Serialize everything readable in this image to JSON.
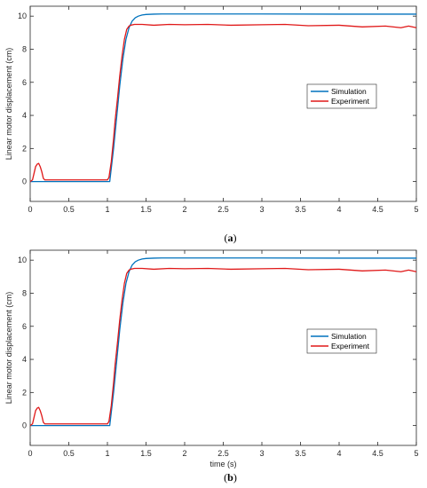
{
  "chart_data": [
    {
      "type": "line",
      "panel": "a",
      "caption_open": "(",
      "caption_letter": "a",
      "caption_close": ")",
      "xlabel": "",
      "ylabel": "Linear motor displacement (cm)",
      "xlim": [
        0,
        5
      ],
      "ylim": [
        -1.2,
        10.6
      ],
      "xticks": [
        0,
        0.5,
        1,
        1.5,
        2,
        2.5,
        3,
        3.5,
        4,
        4.5,
        5
      ],
      "xtick_labels": [
        "0",
        "0.5",
        "1",
        "1.5",
        "2",
        "2.5",
        "3",
        "3.5",
        "4",
        "4.5",
        "5"
      ],
      "yticks": [
        0,
        2,
        4,
        6,
        8,
        10
      ],
      "ytick_labels": [
        "0",
        "2",
        "4",
        "6",
        "8",
        "10"
      ],
      "legend": {
        "placement": "right-middle"
      },
      "series": [
        {
          "name": "Simulation",
          "color": "#0072bd",
          "x": [
            0,
            1.03,
            1.08,
            1.12,
            1.16,
            1.2,
            1.24,
            1.28,
            1.32,
            1.36,
            1.4,
            1.45,
            1.5,
            1.6,
            1.7,
            1.8,
            2.0,
            3.0,
            4.0,
            5.0
          ],
          "y": [
            0,
            0,
            2.0,
            3.9,
            5.8,
            7.4,
            8.6,
            9.3,
            9.7,
            9.9,
            10.0,
            10.07,
            10.1,
            10.12,
            10.13,
            10.13,
            10.13,
            10.13,
            10.12,
            10.12
          ]
        },
        {
          "name": "Experiment",
          "color": "#e01818",
          "x": [
            0,
            0.03,
            0.05,
            0.07,
            0.09,
            0.11,
            0.13,
            0.15,
            0.17,
            0.19,
            0.5,
            0.8,
            1.0,
            1.02,
            1.05,
            1.08,
            1.1,
            1.13,
            1.16,
            1.19,
            1.22,
            1.25,
            1.28,
            1.3,
            1.35,
            1.45,
            1.6,
            1.8,
            2.0,
            2.3,
            2.6,
            3.0,
            3.3,
            3.6,
            4.0,
            4.3,
            4.6,
            4.8,
            4.9,
            5.0
          ],
          "y": [
            0,
            0.1,
            0.5,
            0.9,
            1.05,
            1.1,
            0.9,
            0.6,
            0.2,
            0.1,
            0.1,
            0.1,
            0.1,
            0.25,
            1.2,
            2.6,
            3.7,
            5.0,
            6.4,
            7.6,
            8.6,
            9.2,
            9.4,
            9.45,
            9.5,
            9.5,
            9.45,
            9.5,
            9.48,
            9.5,
            9.45,
            9.48,
            9.5,
            9.42,
            9.45,
            9.35,
            9.4,
            9.3,
            9.4,
            9.3
          ]
        }
      ]
    },
    {
      "type": "line",
      "panel": "b",
      "caption_open": "(",
      "caption_letter": "b",
      "caption_close": ")",
      "xlabel": "time (s)",
      "ylabel": "Linear motor displacement (cm)",
      "xlim": [
        0,
        5
      ],
      "ylim": [
        -1.2,
        10.6
      ],
      "xticks": [
        0,
        0.5,
        1,
        1.5,
        2,
        2.5,
        3,
        3.5,
        4,
        4.5,
        5
      ],
      "xtick_labels": [
        "0",
        "0.5",
        "1",
        "1.5",
        "2",
        "2.5",
        "3",
        "3.5",
        "4",
        "4.5",
        "5"
      ],
      "yticks": [
        0,
        2,
        4,
        6,
        8,
        10
      ],
      "ytick_labels": [
        "0",
        "2",
        "4",
        "6",
        "8",
        "10"
      ],
      "legend": {
        "placement": "right-middle"
      },
      "series": [
        {
          "name": "Simulation",
          "color": "#0072bd",
          "x": [
            0,
            1.03,
            1.08,
            1.12,
            1.16,
            1.2,
            1.24,
            1.28,
            1.32,
            1.36,
            1.4,
            1.45,
            1.5,
            1.6,
            1.7,
            1.8,
            2.0,
            3.0,
            4.0,
            5.0
          ],
          "y": [
            0,
            0,
            2.0,
            3.9,
            5.8,
            7.4,
            8.6,
            9.3,
            9.7,
            9.9,
            10.0,
            10.07,
            10.1,
            10.12,
            10.13,
            10.13,
            10.13,
            10.13,
            10.12,
            10.12
          ]
        },
        {
          "name": "Experiment",
          "color": "#e01818",
          "x": [
            0,
            0.03,
            0.05,
            0.07,
            0.09,
            0.11,
            0.13,
            0.15,
            0.17,
            0.19,
            0.5,
            0.8,
            1.0,
            1.02,
            1.05,
            1.08,
            1.1,
            1.13,
            1.16,
            1.19,
            1.22,
            1.25,
            1.28,
            1.3,
            1.35,
            1.45,
            1.6,
            1.8,
            2.0,
            2.3,
            2.6,
            3.0,
            3.3,
            3.6,
            4.0,
            4.3,
            4.6,
            4.8,
            4.9,
            5.0
          ],
          "y": [
            0,
            0.1,
            0.5,
            0.9,
            1.05,
            1.1,
            0.9,
            0.6,
            0.2,
            0.1,
            0.1,
            0.1,
            0.1,
            0.25,
            1.2,
            2.6,
            3.7,
            5.0,
            6.4,
            7.6,
            8.6,
            9.2,
            9.4,
            9.45,
            9.5,
            9.5,
            9.45,
            9.5,
            9.48,
            9.5,
            9.45,
            9.48,
            9.5,
            9.42,
            9.45,
            9.35,
            9.4,
            9.3,
            9.4,
            9.3
          ]
        }
      ]
    }
  ]
}
